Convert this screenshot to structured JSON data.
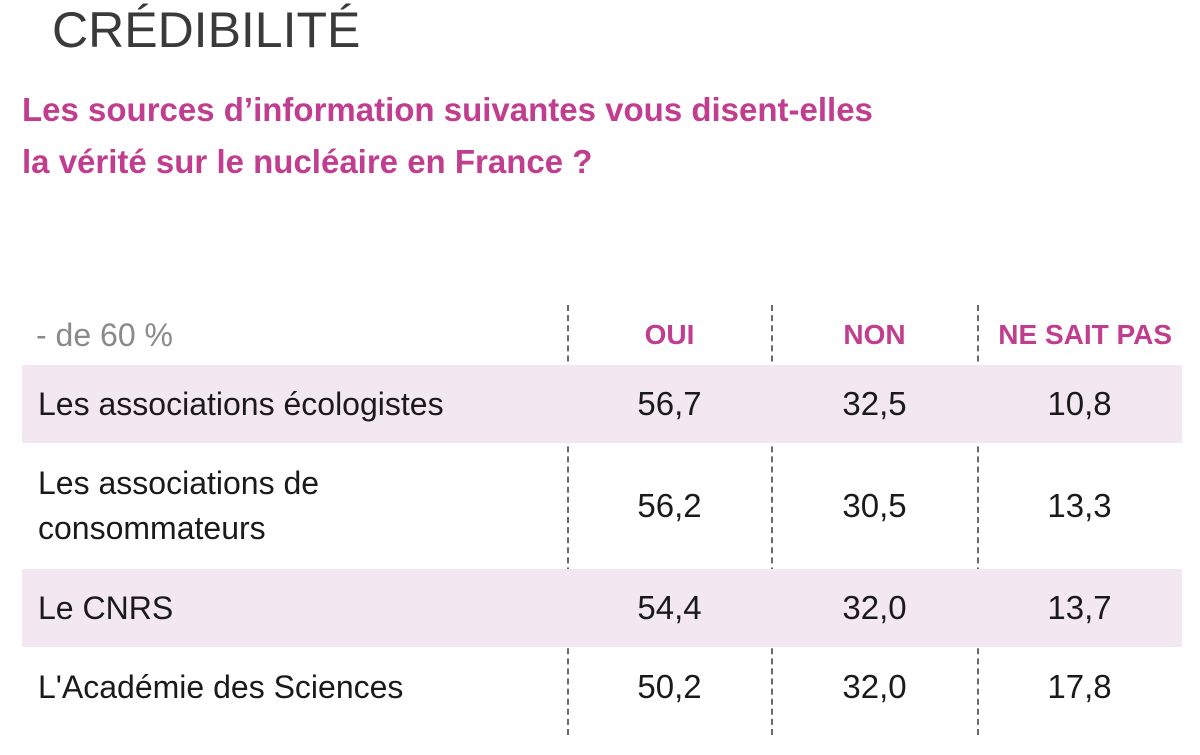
{
  "header": {
    "title": "CRÉDIBILITÉ",
    "question_line1": "Les sources d’information suivantes vous disent-elles",
    "question_line2": "la vérité sur le nucléaire en France ?"
  },
  "colors": {
    "accent": "#c13d8f",
    "row_shade": "#f3e8f1",
    "title": "#3a3a3a"
  },
  "table": {
    "columns": {
      "group": "- de 60 %",
      "oui": "OUI",
      "non": "NON",
      "ne_sait_pas": "NE SAIT PAS"
    },
    "rows": [
      {
        "source": "Les associations écologistes",
        "oui": "56,7",
        "non": "32,5",
        "ne_sait_pas": "10,8"
      },
      {
        "source_line1": "Les associations de",
        "source_line2": "consommateurs",
        "oui": "56,2",
        "non": "30,5",
        "ne_sait_pas": "13,3"
      },
      {
        "source": "Le CNRS",
        "oui": "54,4",
        "non": "32,0",
        "ne_sait_pas": "13,7"
      },
      {
        "source": "L'Académie des Sciences",
        "oui": "50,2",
        "non": "32,0",
        "ne_sait_pas": "17,8"
      }
    ]
  }
}
